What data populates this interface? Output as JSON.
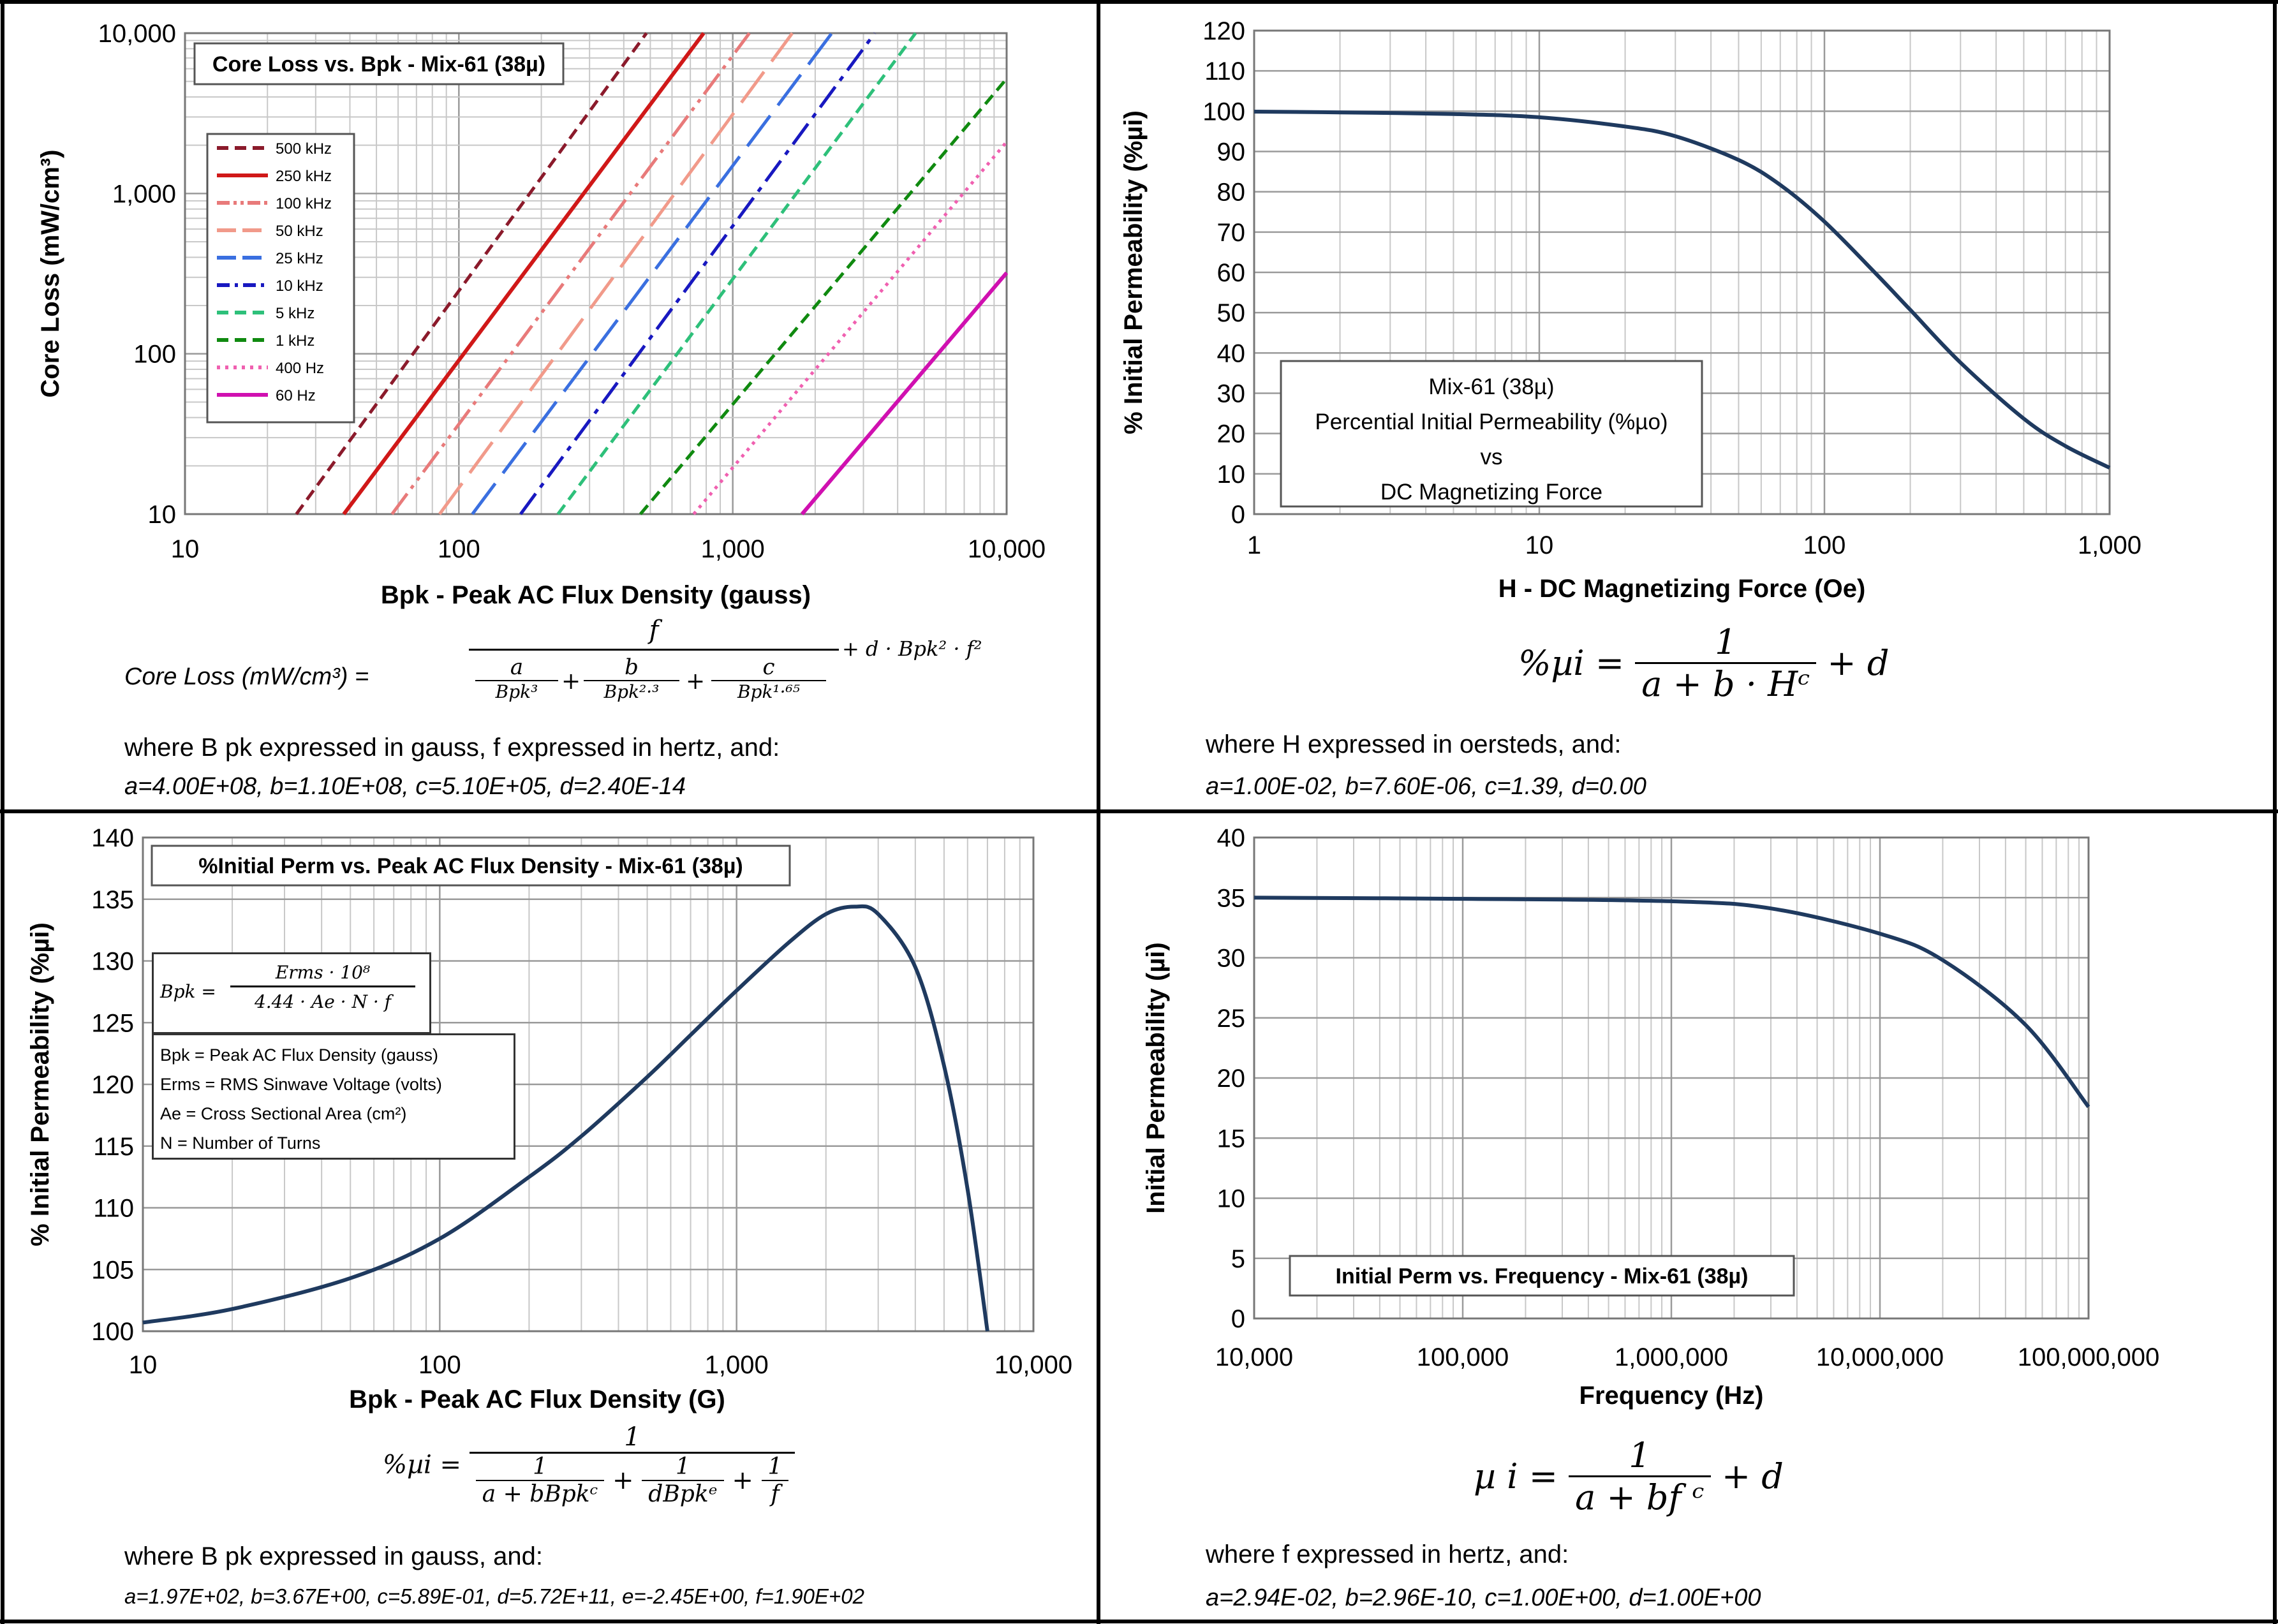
{
  "colors": {
    "curve": "#1f3a5f",
    "grid_major": "#9a9a9a",
    "grid_minor": "#c8c8c8",
    "c500k": "#8b1a2b",
    "c250k": "#d01818",
    "c100k": "#e87a7a",
    "c50k": "#f19a8a",
    "c25k": "#3a6fe0",
    "c10k": "#1818c0",
    "c5k": "#2ec07a",
    "c1k": "#108a10",
    "c400": "#f060b0",
    "c60": "#d010b0"
  },
  "chart_data": [
    {
      "type": "line",
      "title": "Core Loss vs. Bpk - Mix-61  (38µ)",
      "xlabel": "Bpk - Peak AC Flux Density (gauss)",
      "ylabel": "Core Loss (mW/cm³)",
      "x_scale": "log",
      "y_scale": "log",
      "xlim": [
        10,
        10000
      ],
      "ylim": [
        10,
        10000
      ],
      "x_ticks": [
        "10",
        "100",
        "1,000",
        "10,000"
      ],
      "y_ticks": [
        "10",
        "100",
        "1,000",
        "10,000"
      ],
      "grid": true,
      "legend_position": "top-left",
      "series": [
        {
          "name": "500 kHz",
          "dash": "dashed",
          "x": [
            25.5,
            484
          ],
          "y": [
            10,
            10000
          ]
        },
        {
          "name": "250 kHz",
          "dash": "solid",
          "x": [
            38,
            783
          ],
          "y": [
            10,
            10000
          ]
        },
        {
          "name": "100 kHz",
          "dash": "dashdotdot",
          "x": [
            57,
            1150
          ],
          "y": [
            10,
            10000
          ]
        },
        {
          "name": "50 kHz",
          "dash": "longdash",
          "x": [
            85,
            1650
          ],
          "y": [
            10,
            10000
          ]
        },
        {
          "name": "25 kHz",
          "dash": "longdash",
          "x": [
            112,
            2300
          ],
          "y": [
            10,
            10000
          ]
        },
        {
          "name": "10 kHz",
          "dash": "dashdot",
          "x": [
            168,
            3300
          ],
          "y": [
            10,
            10000
          ]
        },
        {
          "name": "5 kHz",
          "dash": "dashed",
          "x": [
            230,
            4650
          ],
          "y": [
            10,
            10000
          ]
        },
        {
          "name": "1 kHz",
          "dash": "dashed",
          "x": [
            460,
            10000
          ],
          "y": [
            10,
            5200
          ]
        },
        {
          "name": "400 Hz",
          "dash": "dotted",
          "x": [
            720,
            10000
          ],
          "y": [
            10,
            2100
          ]
        },
        {
          "name": "60 Hz",
          "dash": "solid",
          "x": [
            1790,
            10000
          ],
          "y": [
            10,
            320
          ]
        }
      ]
    },
    {
      "type": "line",
      "title": "",
      "xlabel": "H - DC Magnetizing Force (Oe)",
      "ylabel": "% Initial Permeability (%µi)",
      "x_scale": "log",
      "y_scale": "linear",
      "xlim": [
        1,
        1000
      ],
      "ylim": [
        0,
        120
      ],
      "x_ticks": [
        "1",
        "10",
        "100",
        "1,000"
      ],
      "y_ticks": [
        "0",
        "10",
        "20",
        "30",
        "40",
        "50",
        "60",
        "70",
        "80",
        "90",
        "100",
        "110",
        "120"
      ],
      "grid": true,
      "legend_position": "bottom-left",
      "annotation": [
        "Mix-61  (38µ)",
        "Percential Initial Permeability (%µo)",
        "vs",
        "DC Magnetizing Force"
      ],
      "series": [
        {
          "x": [
            1,
            2,
            5,
            10,
            20,
            30,
            50,
            70,
            100,
            150,
            200,
            300,
            500,
            700,
            1000
          ],
          "y": [
            99.9,
            99.7,
            99.3,
            98.5,
            96.2,
            93.8,
            87.9,
            81.7,
            72.6,
            60.0,
            50.7,
            37.6,
            23.7,
            16.9,
            11.5
          ]
        }
      ]
    },
    {
      "type": "line",
      "title": "%Initial Perm vs. Peak AC Flux Density - Mix-61  (38µ)",
      "xlabel": "Bpk - Peak AC Flux Density (G)",
      "ylabel": "% Initial Permeability (%µi)",
      "x_scale": "log",
      "y_scale": "linear",
      "xlim": [
        10,
        10000
      ],
      "ylim": [
        100,
        140
      ],
      "x_ticks": [
        "10",
        "100",
        "1,000",
        "10,000"
      ],
      "y_ticks": [
        "100",
        "105",
        "110",
        "115",
        "120",
        "125",
        "130",
        "135",
        "140"
      ],
      "grid": true,
      "legend_position": "top-left",
      "series": [
        {
          "x": [
            10,
            20,
            50,
            100,
            200,
            300,
            500,
            700,
            1000,
            1500,
            2000,
            2500,
            3000,
            4000,
            5000,
            6000,
            7000
          ],
          "y": [
            100.7,
            101.8,
            104.3,
            107.5,
            112.5,
            115.8,
            120.6,
            124.0,
            127.6,
            131.5,
            133.8,
            134.4,
            133.8,
            129.5,
            121.5,
            111.5,
            100.0
          ]
        }
      ]
    },
    {
      "type": "line",
      "title": "Initial Perm vs. Frequency - Mix-61  (38µ)",
      "xlabel": "Frequency (Hz)",
      "ylabel": "Initial Permeability (µi)",
      "x_scale": "log",
      "y_scale": "linear",
      "xlim": [
        10000,
        100000000
      ],
      "ylim": [
        0,
        40
      ],
      "x_ticks": [
        "10,000",
        "100,000",
        "1,000,000",
        "10,000,000",
        "100,000,000"
      ],
      "y_ticks": [
        "0",
        "5",
        "10",
        "15",
        "20",
        "25",
        "30",
        "35",
        "40"
      ],
      "grid": true,
      "legend_position": "bottom-left",
      "series": [
        {
          "x": [
            10000,
            100000,
            1000000,
            3000000,
            10000000,
            20000000,
            50000000,
            100000000
          ],
          "y": [
            35.0,
            34.9,
            34.7,
            34.1,
            32.0,
            29.8,
            24.4,
            17.6
          ]
        }
      ]
    }
  ],
  "panel1": {
    "formula_lhs": "Core Loss (mW/cm³)  =",
    "num": "f",
    "den_a": "a",
    "den_b": "b",
    "den_c": "c",
    "den_a_d": "Bpk³",
    "den_b_d": "Bpk²·³",
    "den_c_d": "Bpk¹·⁶⁵",
    "tail": "+ d · Bpk² · f²",
    "where": "where B pk  expressed in gauss, f  expressed in hertz, and:",
    "coeffs": "a=4.00E+08,   b=1.10E+08,  c=5.10E+05,   d=2.40E-14",
    "legend": [
      "500 kHz",
      "250 kHz",
      "100 kHz",
      "50 kHz",
      "25 kHz",
      "10 kHz",
      "5 kHz",
      "1 kHz",
      "400 Hz",
      "60 Hz"
    ]
  },
  "panel2": {
    "lhs": "%µi =",
    "num": "1",
    "den": "a + b · Hᶜ",
    "tail": "+ d",
    "where": "where H  expressed in oersteds, and:",
    "coeffs": "a=1.00E-02,  b=7.60E-06,  c=1.39,  d=0.00"
  },
  "panel3": {
    "box_lhs": "Bpk =",
    "box_num": "Erms · 10⁸",
    "box_den": "4.44 · Ae · N · f",
    "defs": [
      "Bpk = Peak AC Flux Density (gauss)",
      "Erms = RMS Sinwave Voltage (volts)",
      "Ae = Cross Sectional Area (cm²)",
      "N = Number of Turns"
    ],
    "lhs": "%µi =",
    "num": "1",
    "t1n": "1",
    "t1d": "a + bBpkᶜ",
    "t2n": "1",
    "t2d": "dBpkᵉ",
    "t3n": "1",
    "t3d": "f",
    "where": "where B pk  expressed in gauss, and:",
    "coeffs": "a=1.97E+02, b=3.67E+00, c=5.89E-01, d=5.72E+11, e=-2.45E+00, f=1.90E+02"
  },
  "panel4": {
    "lhs": "µ i  =",
    "num": "1",
    "den": "a  +  bf ᶜ",
    "tail": "+  d",
    "where": "where f  expressed in hertz, and:",
    "coeffs": "a=2.94E-02,   b=2.96E-10,  c=1.00E+00,   d=1.00E+00"
  }
}
